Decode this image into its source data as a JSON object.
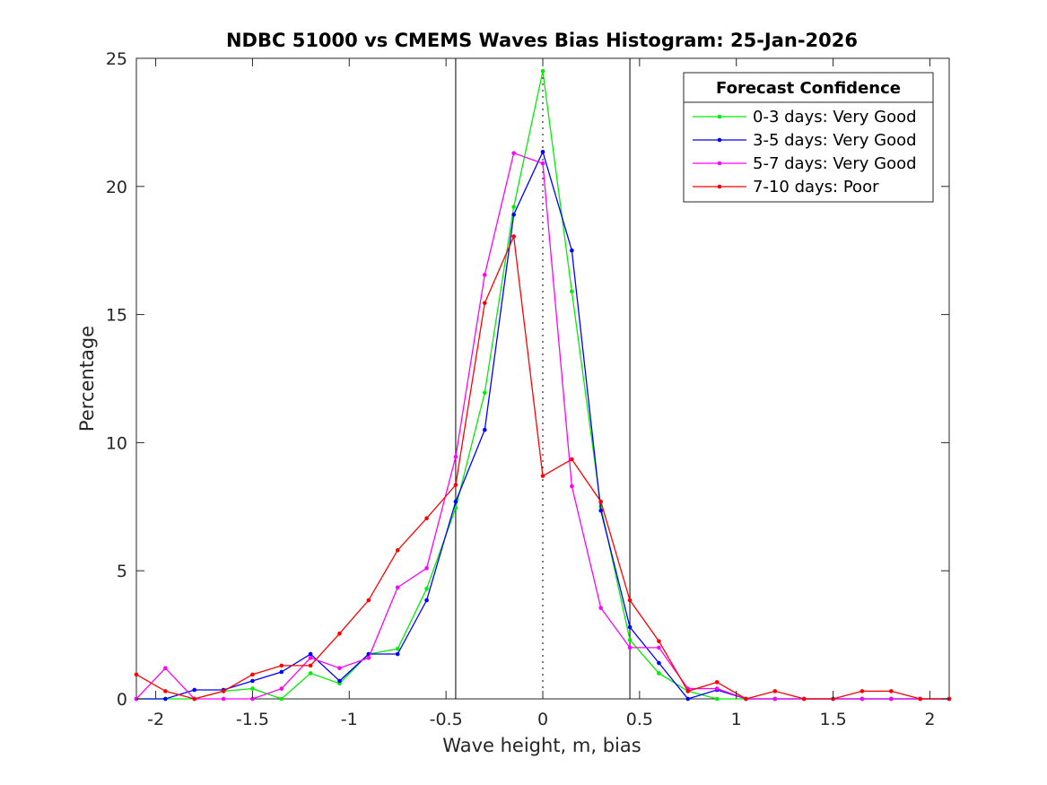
{
  "chart_data": {
    "type": "line",
    "title": "NDBC 51000 vs CMEMS Waves Bias Histogram: 25-Jan-2026",
    "xlabel": "Wave height, m, bias",
    "ylabel": "Percentage",
    "xlim": [
      -2.1,
      2.1
    ],
    "ylim": [
      0,
      25
    ],
    "xticks": [
      -2,
      -1.5,
      -1,
      -0.5,
      0,
      0.5,
      1,
      1.5,
      2
    ],
    "xtick_labels": [
      "-2",
      "-1.5",
      "-1",
      "-0.5",
      "0",
      "0.5",
      "1",
      "1.5",
      "2"
    ],
    "yticks": [
      0,
      5,
      10,
      15,
      20,
      25
    ],
    "ytick_labels": [
      "0",
      "5",
      "10",
      "15",
      "20",
      "25"
    ],
    "grid": false,
    "reference_lines": {
      "bounds": [
        -0.45,
        0.45
      ],
      "zero": 0
    },
    "legend": {
      "title": "Forecast Confidence",
      "position": "top-right"
    },
    "x": [
      -2.1,
      -1.95,
      -1.8,
      -1.65,
      -1.5,
      -1.35,
      -1.2,
      -1.05,
      -0.9,
      -0.75,
      -0.6,
      -0.45,
      -0.3,
      -0.15,
      0,
      0.15,
      0.3,
      0.45,
      0.6,
      0.75,
      0.9,
      1.05,
      1.2,
      1.35,
      1.5,
      1.65,
      1.8,
      1.95,
      2.1
    ],
    "series": [
      {
        "name": "0-3 days: Very Good",
        "color": "#00ee00",
        "values": [
          0,
          0,
          0,
          0.3,
          0.4,
          0,
          1.0,
          0.6,
          1.75,
          1.95,
          4.3,
          7.45,
          11.95,
          19.2,
          24.5,
          15.9,
          7.5,
          2.3,
          1.0,
          0.3,
          0,
          0,
          0,
          0,
          0,
          0,
          0,
          0,
          0
        ]
      },
      {
        "name": "3-5 days: Very Good",
        "color": "#0000ff",
        "values": [
          0,
          0,
          0.35,
          0.35,
          0.7,
          1.05,
          1.75,
          0.7,
          1.75,
          1.75,
          3.85,
          7.7,
          10.5,
          18.9,
          21.35,
          17.5,
          7.35,
          2.8,
          1.4,
          0,
          0.35,
          0,
          0,
          0,
          0,
          0,
          0,
          0,
          0
        ]
      },
      {
        "name": "5-7 days: Very Good",
        "color": "#ff00ff",
        "values": [
          0,
          1.2,
          0,
          0,
          0,
          0.4,
          1.6,
          1.2,
          1.6,
          4.35,
          5.1,
          9.45,
          16.55,
          21.3,
          20.9,
          8.3,
          3.55,
          2.0,
          2.0,
          0.4,
          0.4,
          0,
          0,
          0,
          0,
          0,
          0,
          0,
          0
        ]
      },
      {
        "name": "7-10 days: Poor",
        "color": "#ff0000",
        "values": [
          0.95,
          0.3,
          0,
          0.3,
          0.95,
          1.3,
          1.3,
          2.55,
          3.85,
          5.8,
          7.05,
          8.35,
          15.45,
          18.05,
          8.7,
          9.35,
          7.7,
          3.85,
          2.25,
          0.3,
          0.65,
          0,
          0.3,
          0,
          0,
          0.3,
          0.3,
          0,
          0
        ]
      }
    ]
  }
}
